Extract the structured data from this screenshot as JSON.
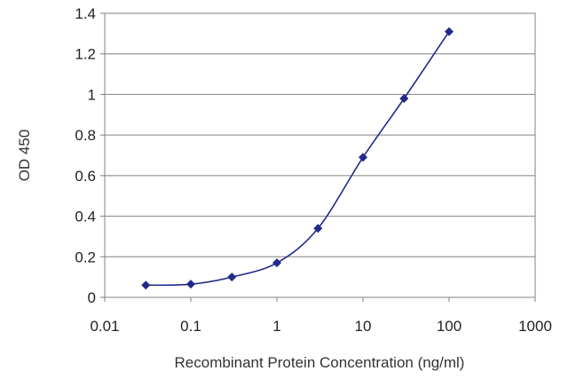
{
  "chart_data": {
    "type": "line",
    "title": "",
    "xlabel": "Recombinant Protein Concentration (ng/ml)",
    "ylabel": "OD 450",
    "x_scale": "log",
    "xlim": [
      0.01,
      1000
    ],
    "ylim": [
      0,
      1.4
    ],
    "x_ticks": [
      "0.01",
      "0.1",
      "1",
      "10",
      "100",
      "1000"
    ],
    "y_ticks": [
      "0",
      "0.2",
      "0.4",
      "0.6",
      "0.8",
      "1",
      "1.2",
      "1.4"
    ],
    "grid": "horizontal",
    "legend": "none",
    "series": [
      {
        "color": "#1f2a8a",
        "marker": "diamond",
        "x": [
          0.03,
          0.1,
          0.3,
          1,
          3,
          10,
          30,
          100
        ],
        "y": [
          0.06,
          0.065,
          0.1,
          0.17,
          0.34,
          0.69,
          0.98,
          1.31
        ]
      }
    ]
  }
}
